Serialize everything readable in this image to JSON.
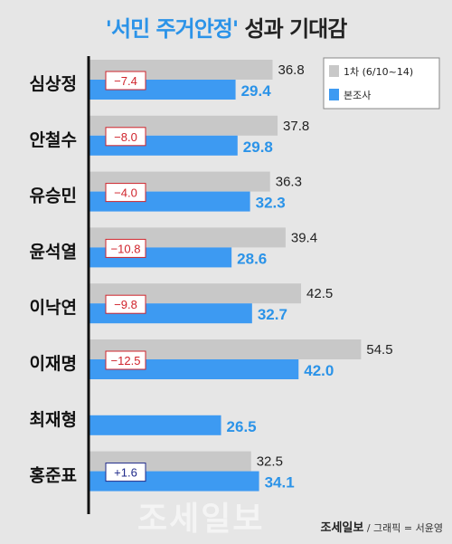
{
  "title": {
    "highlight": "'서민 주거안정'",
    "rest": " 성과 기대감"
  },
  "legend": {
    "series1": "1차 (6/10~14)",
    "series2": "본조사"
  },
  "colors": {
    "series1": "#c8c8c8",
    "series2": "#3d9af2",
    "neg": "#d0242c",
    "pos": "#1f2a8a",
    "axis": "#111111"
  },
  "chart_data": {
    "type": "bar",
    "categories": [
      "심상정",
      "안철수",
      "유승민",
      "윤석열",
      "이낙연",
      "이재명",
      "최재형",
      "홍준표"
    ],
    "series": [
      {
        "name": "1차 (6/10~14)",
        "values": [
          36.8,
          37.8,
          36.3,
          39.4,
          42.5,
          54.5,
          null,
          32.5
        ],
        "labels": [
          "36.8",
          "37.8",
          "36.3",
          "39.4",
          "42.5",
          "54.5",
          "",
          "32.5"
        ]
      },
      {
        "name": "본조사",
        "values": [
          29.4,
          29.8,
          32.3,
          28.6,
          32.7,
          42.0,
          26.5,
          34.1
        ],
        "labels": [
          "29.4",
          "29.8",
          "32.3",
          "28.6",
          "32.7",
          "42.0",
          "26.5",
          "34.1"
        ]
      }
    ],
    "differences": [
      "−7.4",
      "−8.0",
      "−4.0",
      "−10.8",
      "−9.8",
      "−12.5",
      "",
      "+1.6"
    ]
  },
  "watermark": "조세일보",
  "credit": {
    "brand": "조세일보",
    "text": "/ 그래픽 = 서윤영"
  }
}
